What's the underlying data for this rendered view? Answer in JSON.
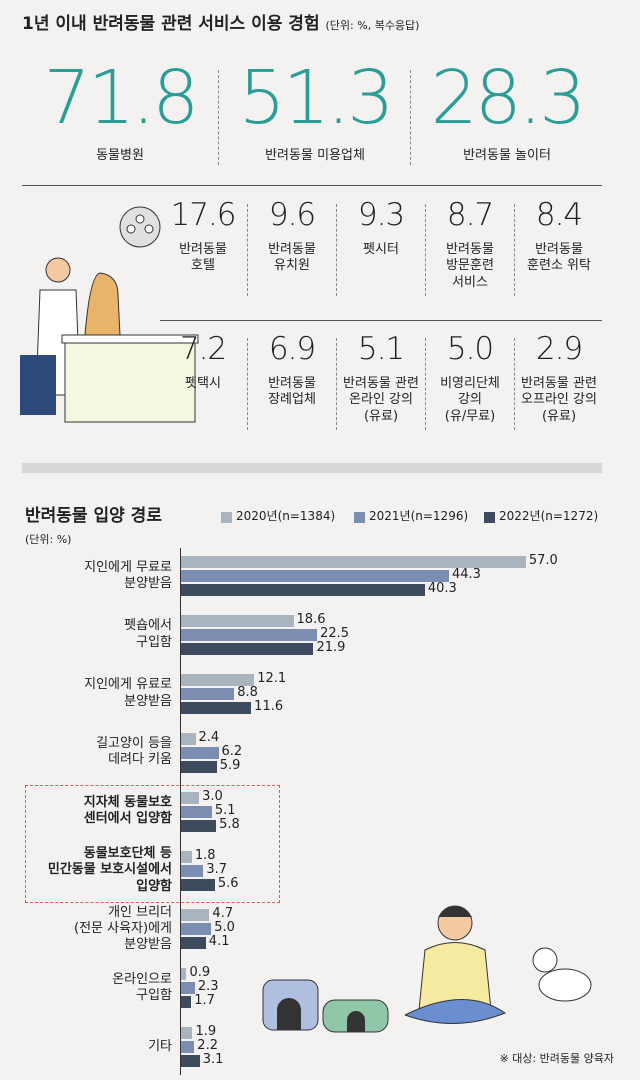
{
  "header": {
    "title": "1년 이내 반려동물 관련 서비스 이용 경험",
    "unit": "(단위: %, 복수응답)"
  },
  "stats": {
    "main": [
      {
        "value": "71.8",
        "label": "동물병원"
      },
      {
        "value": "51.3",
        "label": "반려동물 미용업체"
      },
      {
        "value": "28.3",
        "label": "반려동물 놀이터"
      }
    ],
    "row1": [
      {
        "value": "17.6",
        "label": "반려동물\n호텔"
      },
      {
        "value": "9.6",
        "label": "반려동물\n유치원"
      },
      {
        "value": "9.3",
        "label": "펫시터"
      },
      {
        "value": "8.7",
        "label": "반려동물\n방문훈련\n서비스"
      },
      {
        "value": "8.4",
        "label": "반려동물\n훈련소 위탁"
      }
    ],
    "row2": [
      {
        "value": "7.2",
        "label": "펫택시"
      },
      {
        "value": "6.9",
        "label": "반려동물\n장례업체"
      },
      {
        "value": "5.1",
        "label": "반려동물 관련\n온라인 강의\n(유료)"
      },
      {
        "value": "5.0",
        "label": "비영리단체\n강의\n(유/무료)"
      },
      {
        "value": "2.9",
        "label": "반려동물 관련\n오프라인 강의\n(유료)"
      }
    ]
  },
  "chart_data": {
    "type": "bar",
    "orientation": "horizontal",
    "title": "반려동물 입양 경로",
    "unit": "(단위: %)",
    "categories": [
      "지인에게 무료로\n분양받음",
      "펫숍에서\n구입함",
      "지인에게 유료로\n분양받음",
      "길고양이 등을\n데려다 키움",
      "지자체 동물보호\n센터에서 입양함",
      "동물보호단체 등\n민간동물 보호시설에서\n입양함",
      "개인 브리더\n(전문 사육자)에게\n분양받음",
      "온라인으로\n구입함",
      "기타"
    ],
    "series": [
      {
        "name": "2020년(n=1384)",
        "color": "#a9b4bf",
        "values": [
          57.0,
          18.6,
          12.1,
          2.4,
          3.0,
          1.8,
          4.7,
          0.9,
          1.9
        ],
        "value_labels": [
          "57.0",
          "18.6",
          "12.1",
          "2.4",
          "3.0",
          "1.8",
          "4.7",
          "0.9",
          "1.9"
        ]
      },
      {
        "name": "2021년(n=1296)",
        "color": "#7b8db0",
        "values": [
          44.3,
          22.5,
          8.8,
          6.2,
          5.1,
          3.7,
          5.0,
          2.3,
          2.2
        ],
        "value_labels": [
          "44.3",
          "22.5",
          "8.8",
          "6.2",
          "5.1",
          "3.7",
          "5.0",
          "2.3",
          "2.2"
        ]
      },
      {
        "name": "2022년(n=1272)",
        "color": "#3e4a5e",
        "values": [
          40.3,
          21.9,
          11.6,
          5.9,
          5.8,
          5.6,
          4.1,
          1.7,
          3.1
        ],
        "value_labels": [
          "40.3",
          "21.9",
          "11.6",
          "5.9",
          "5.8",
          "5.6",
          "4.1",
          "1.7",
          "3.1"
        ]
      }
    ],
    "note": "※ 대상: 반려동물 양육자"
  }
}
